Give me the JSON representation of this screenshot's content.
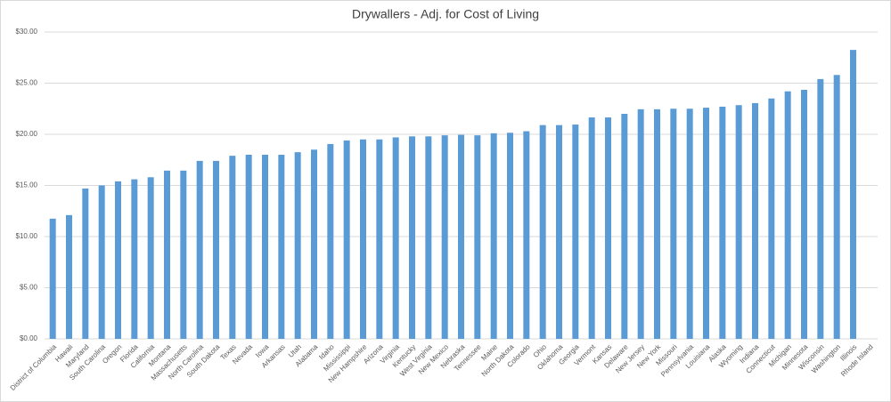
{
  "chart_data": {
    "type": "bar",
    "title": "Drywallers - Adj. for Cost of Living",
    "categories": [
      "District of Columbia",
      "Hawaii",
      "Maryland",
      "South Carolina",
      "Oregon",
      "Florida",
      "California",
      "Montana",
      "Massachusetts",
      "North Carolina",
      "South Dakota",
      "Texas",
      "Nevada",
      "Iowa",
      "Arkansas",
      "Utah",
      "Alabama",
      "Idaho",
      "Mississippi",
      "New Hampshire",
      "Arizona",
      "Virginia",
      "Kentucky",
      "West Virginia",
      "New Mexico",
      "Nebraska",
      "Tennessee",
      "Maine",
      "North Dakota",
      "Colorado",
      "Ohio",
      "Oklahoma",
      "Georgia",
      "Vermont",
      "Kansas",
      "Delaware",
      "New Jersey",
      "New York",
      "Missouri",
      "Pennsylvania",
      "Louisiana",
      "Alaska",
      "Wyoming",
      "Indiana",
      "Connecticut",
      "Michigan",
      "Minnesota",
      "Wisconsin",
      "Washington",
      "Illinois",
      "Rhode Island"
    ],
    "values": [
      11.75,
      12.1,
      14.7,
      15.0,
      15.4,
      15.6,
      15.8,
      16.45,
      16.45,
      17.4,
      17.4,
      17.9,
      18.0,
      18.0,
      18.0,
      18.25,
      18.5,
      19.05,
      19.4,
      19.5,
      19.5,
      19.7,
      19.8,
      19.8,
      19.9,
      19.95,
      19.9,
      20.1,
      20.15,
      20.3,
      20.9,
      20.9,
      20.95,
      21.65,
      21.65,
      22.0,
      22.45,
      22.45,
      22.5,
      22.5,
      22.6,
      22.7,
      22.85,
      23.05,
      23.5,
      24.2,
      24.35,
      25.4,
      25.8,
      28.25,
      null
    ],
    "color": "#5b9bd5",
    "ylim": [
      0,
      30
    ],
    "yticks": [
      {
        "value": 0,
        "label": "$0.00"
      },
      {
        "value": 5,
        "label": "$5.00"
      },
      {
        "value": 10,
        "label": "$10.00"
      },
      {
        "value": 15,
        "label": "$15.00"
      },
      {
        "value": 20,
        "label": "$20.00"
      },
      {
        "value": 25,
        "label": "$25.00"
      },
      {
        "value": 30,
        "label": "$30.00"
      }
    ],
    "grid": true
  }
}
